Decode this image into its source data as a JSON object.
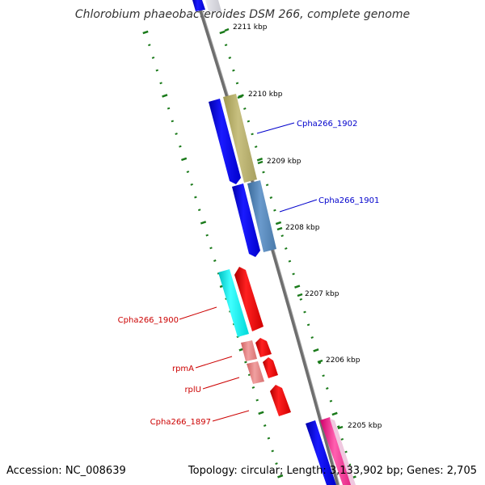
{
  "title": "Chlorobium phaeobacteroides DSM 266, complete genome",
  "accession": "Accession: NC_008639",
  "summary": "Topology: circular; Length: 3,133,902 bp; Genes: 2,705",
  "colors": {
    "backbone": "#7a7a7a",
    "tick": "#1a7a1a",
    "forward_label": "#0000cc",
    "reverse_label": "#cc0000"
  },
  "kbp_ticks": [
    {
      "label": "2211 kbp"
    },
    {
      "label": "2210 kbp"
    },
    {
      "label": "2209 kbp"
    },
    {
      "label": "2208 kbp"
    },
    {
      "label": "2207 kbp"
    },
    {
      "label": "2206 kbp"
    },
    {
      "label": "2205 kbp"
    }
  ],
  "genes": [
    {
      "name": "Cpha266_1902",
      "strand": "forward"
    },
    {
      "name": "Cpha266_1901",
      "strand": "forward"
    },
    {
      "name": "Cpha266_1900",
      "strand": "reverse"
    },
    {
      "name": "rpmA",
      "strand": "reverse"
    },
    {
      "name": "rplU",
      "strand": "reverse"
    },
    {
      "name": "Cpha266_1897",
      "strand": "reverse"
    }
  ]
}
